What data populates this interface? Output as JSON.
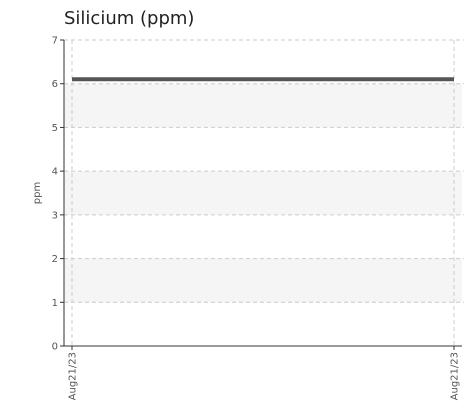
{
  "chart_data": {
    "type": "line",
    "title": "Silicium (ppm)",
    "xlabel": "",
    "ylabel": "ppm",
    "categories": [
      "Aug21/23",
      "Aug21/23"
    ],
    "series": [
      {
        "values": [
          6.1,
          6.1
        ],
        "color": "#555555"
      }
    ],
    "ylim": [
      0,
      7
    ],
    "yticks": [
      "0",
      "1",
      "2",
      "3",
      "4",
      "5",
      "6",
      "7"
    ],
    "grid": true,
    "band_color": "#f5f5f5",
    "grid_color": "#cccccc",
    "axis_color": "#333333"
  }
}
